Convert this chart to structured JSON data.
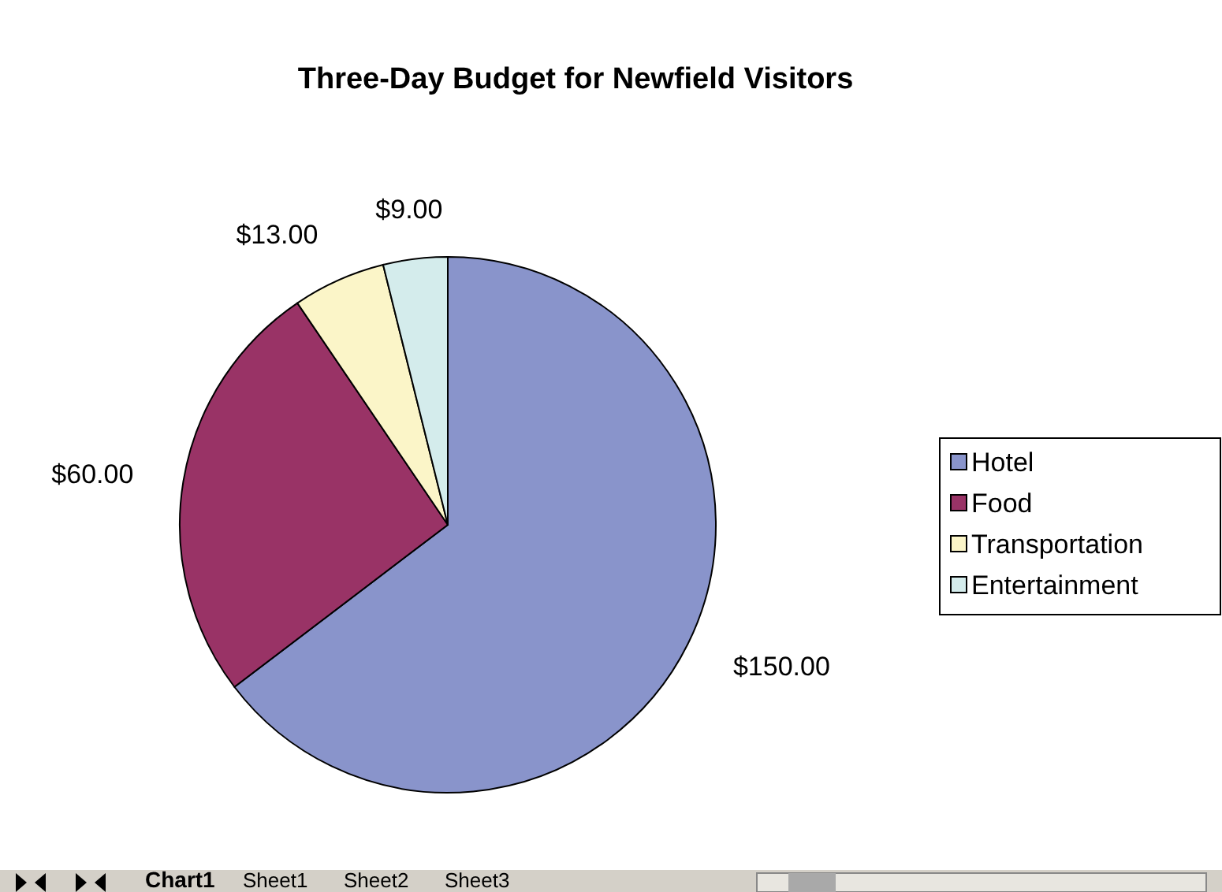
{
  "chart_data": {
    "type": "pie",
    "title": "Three-Day Budget for Newfield Visitors",
    "categories": [
      "Hotel",
      "Food",
      "Transportation",
      "Entertainment"
    ],
    "values": [
      150,
      60,
      13,
      9
    ],
    "colors": [
      "#8994cb",
      "#993366",
      "#fbf5c8",
      "#d4ecec"
    ],
    "value_labels": [
      "$150.00",
      "$60.00",
      "$13.00",
      "$9.00"
    ],
    "legend": "right",
    "annotations": [
      "Chart1",
      "Sheet1",
      "Sheet2",
      "Sheet3"
    ]
  }
}
